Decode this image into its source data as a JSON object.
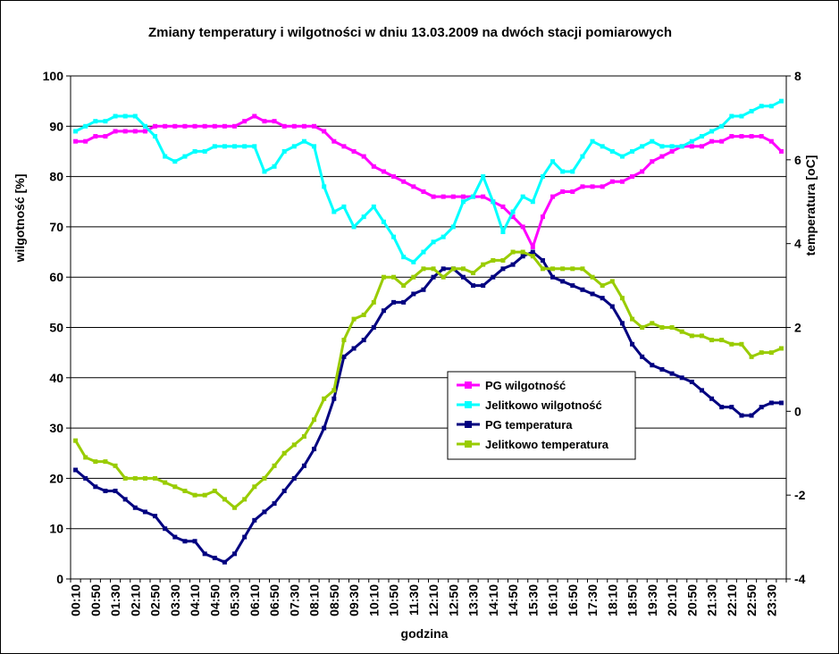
{
  "chart_data": {
    "type": "line",
    "title": "Zmiany temperatury i wilgotności w dniu 13.03.2009 na dwóch stacji pomiarowych",
    "xlabel": "godzina",
    "ylabel_left": "wilgotność [%]",
    "ylabel_right": "temperatura [oC]",
    "ylim_left": [
      0,
      100
    ],
    "yticks_left": [
      "0",
      "10",
      "20",
      "30",
      "40",
      "50",
      "60",
      "70",
      "80",
      "90",
      "100"
    ],
    "ylim_right": [
      -4,
      8
    ],
    "yticks_right": [
      "-4",
      "-2",
      "0",
      "2",
      "4",
      "6",
      "8"
    ],
    "grid": "horizontal",
    "legend_position": "center-right",
    "x_tick_labels": [
      "00:10",
      "00:50",
      "01:30",
      "02:10",
      "02:50",
      "03:30",
      "04:10",
      "04:50",
      "05:30",
      "06:10",
      "06:50",
      "07:30",
      "08:10",
      "08:50",
      "09:30",
      "10:10",
      "10:50",
      "11:30",
      "12:10",
      "12:50",
      "13:30",
      "14:10",
      "14:50",
      "15:30",
      "16:10",
      "16:50",
      "17:30",
      "18:10",
      "18:50",
      "19:30",
      "20:10",
      "20:50",
      "21:30",
      "22:10",
      "22:50",
      "23:30"
    ],
    "x": [
      "00:10",
      "00:30",
      "00:50",
      "01:10",
      "01:30",
      "01:50",
      "02:10",
      "02:30",
      "02:50",
      "03:10",
      "03:30",
      "03:50",
      "04:10",
      "04:30",
      "04:50",
      "05:10",
      "05:30",
      "05:50",
      "06:10",
      "06:30",
      "06:50",
      "07:10",
      "07:30",
      "07:50",
      "08:10",
      "08:30",
      "08:50",
      "09:10",
      "09:30",
      "09:50",
      "10:10",
      "10:30",
      "10:50",
      "11:10",
      "11:30",
      "11:50",
      "12:10",
      "12:30",
      "12:50",
      "13:10",
      "13:30",
      "13:50",
      "14:10",
      "14:30",
      "14:50",
      "15:10",
      "15:30",
      "15:50",
      "16:10",
      "16:30",
      "16:50",
      "17:10",
      "17:30",
      "17:50",
      "18:10",
      "18:30",
      "18:50",
      "19:10",
      "19:30",
      "19:50",
      "20:10",
      "20:30",
      "20:50",
      "21:10",
      "21:30",
      "21:50",
      "22:10",
      "22:30",
      "22:50",
      "23:10",
      "23:30",
      "23:50"
    ],
    "series": [
      {
        "name": "PG wilgotność",
        "axis": "left",
        "color": "#ff00ff",
        "values": [
          87,
          87,
          88,
          88,
          89,
          89,
          89,
          89,
          90,
          90,
          90,
          90,
          90,
          90,
          90,
          90,
          90,
          91,
          92,
          91,
          91,
          90,
          90,
          90,
          90,
          89,
          87,
          86,
          85,
          84,
          82,
          81,
          80,
          79,
          78,
          77,
          76,
          76,
          76,
          76,
          76,
          76,
          75,
          74,
          72,
          70,
          66,
          72,
          76,
          77,
          77,
          78,
          78,
          78,
          79,
          79,
          80,
          81,
          83,
          84,
          85,
          86,
          86,
          86,
          87,
          87,
          88,
          88,
          88,
          88,
          87,
          85
        ]
      },
      {
        "name": "Jelitkowo wilgotność",
        "axis": "left",
        "color": "#00ffff",
        "values": [
          89,
          90,
          91,
          91,
          92,
          92,
          92,
          90,
          88,
          84,
          83,
          84,
          85,
          85,
          86,
          86,
          86,
          86,
          86,
          81,
          82,
          85,
          86,
          87,
          86,
          78,
          73,
          74,
          70,
          72,
          74,
          71,
          68,
          64,
          63,
          65,
          67,
          68,
          70,
          75,
          76,
          80,
          75,
          69,
          73,
          76,
          75,
          80,
          83,
          81,
          81,
          84,
          87,
          86,
          85,
          84,
          85,
          86,
          87,
          86,
          86,
          86,
          87,
          88,
          89,
          90,
          92,
          92,
          93,
          94,
          94,
          95
        ]
      },
      {
        "name": "PG temperatura",
        "axis": "right",
        "color": "#000080",
        "values": [
          -1.4,
          -1.6,
          -1.8,
          -1.9,
          -1.9,
          -2.1,
          -2.3,
          -2.4,
          -2.5,
          -2.8,
          -3.0,
          -3.1,
          -3.1,
          -3.4,
          -3.5,
          -3.6,
          -3.4,
          -3.0,
          -2.6,
          -2.4,
          -2.2,
          -1.9,
          -1.6,
          -1.3,
          -0.9,
          -0.4,
          0.3,
          1.3,
          1.5,
          1.7,
          2.0,
          2.4,
          2.6,
          2.6,
          2.8,
          2.9,
          3.2,
          3.4,
          3.4,
          3.2,
          3.0,
          3.0,
          3.2,
          3.4,
          3.5,
          3.7,
          3.8,
          3.6,
          3.2,
          3.1,
          3.0,
          2.9,
          2.8,
          2.7,
          2.5,
          2.1,
          1.6,
          1.3,
          1.1,
          1.0,
          0.9,
          0.8,
          0.7,
          0.5,
          0.3,
          0.1,
          0.1,
          -0.1,
          -0.1,
          0.1,
          0.2,
          0.2
        ]
      },
      {
        "name": "Jelitkowo temperatura",
        "axis": "right",
        "color": "#99cc00",
        "values": [
          -0.7,
          -1.1,
          -1.2,
          -1.2,
          -1.3,
          -1.6,
          -1.6,
          -1.6,
          -1.6,
          -1.7,
          -1.8,
          -1.9,
          -2.0,
          -2.0,
          -1.9,
          -2.1,
          -2.3,
          -2.1,
          -1.8,
          -1.6,
          -1.3,
          -1.0,
          -0.8,
          -0.6,
          -0.2,
          0.3,
          0.5,
          1.7,
          2.2,
          2.3,
          2.6,
          3.2,
          3.2,
          3.0,
          3.2,
          3.4,
          3.4,
          3.2,
          3.4,
          3.4,
          3.3,
          3.5,
          3.6,
          3.6,
          3.8,
          3.8,
          3.7,
          3.4,
          3.4,
          3.4,
          3.4,
          3.4,
          3.2,
          3.0,
          3.1,
          2.7,
          2.2,
          2.0,
          2.1,
          2.0,
          2.0,
          1.9,
          1.8,
          1.8,
          1.7,
          1.7,
          1.6,
          1.6,
          1.3,
          1.4,
          1.4,
          1.5
        ]
      }
    ]
  }
}
